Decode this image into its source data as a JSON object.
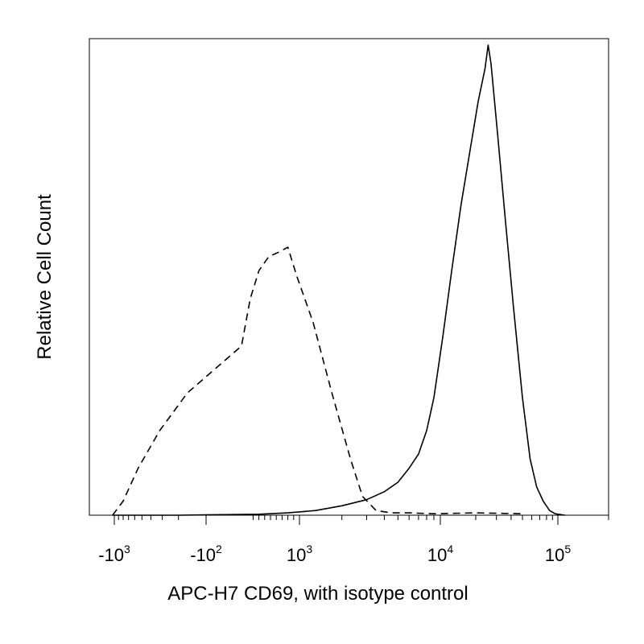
{
  "chart_data": {
    "type": "line",
    "title": "",
    "xlabel": "APC-H7 CD69, with isotype control",
    "ylabel": "Relative Cell Count",
    "x_scale": "biexponential",
    "xlim": [
      -2000,
      200000
    ],
    "ylim": [
      0,
      100
    ],
    "x_ticks": [
      {
        "value": -1000,
        "base": "-10",
        "exp": "3"
      },
      {
        "value": -100,
        "base": "-10",
        "exp": "2"
      },
      {
        "value": 1000,
        "base": "10",
        "exp": "3"
      },
      {
        "value": 10000,
        "base": "10",
        "exp": "4"
      },
      {
        "value": 100000,
        "base": "10",
        "exp": "5"
      }
    ],
    "grid": false,
    "legend": "none",
    "line_color": "#000000",
    "series": [
      {
        "style": "dashed",
        "x": [
          -1050,
          -800,
          -550,
          -320,
          -160,
          0,
          150,
          300,
          470,
          650,
          800,
          950,
          1250,
          1700,
          2300,
          2800,
          3500,
          4500,
          6000,
          9000,
          20000,
          50000
        ],
        "y": [
          0,
          3,
          10,
          18,
          26,
          36,
          46,
          52,
          55,
          56,
          57,
          51,
          41,
          26,
          12,
          4,
          1,
          0.5,
          0.5,
          0.3,
          0.5,
          0.3
        ]
      },
      {
        "style": "solid",
        "x": [
          -1050,
          -200,
          300,
          800,
          1300,
          2000,
          3000,
          4000,
          5000,
          6000,
          7000,
          8000,
          9000,
          10500,
          12500,
          15000,
          18000,
          21000,
          24000,
          25500,
          27000,
          31000,
          36000,
          42000,
          50000,
          58000,
          66000,
          75000,
          85000,
          95000,
          110000
        ],
        "y": [
          0,
          0,
          0.2,
          0.5,
          1,
          2,
          3.3,
          5,
          7,
          10,
          13,
          18,
          25,
          38,
          52,
          66,
          78,
          88,
          95,
          100,
          96,
          80,
          62,
          44,
          25,
          12,
          6,
          3,
          1,
          0.3,
          0
        ]
      }
    ]
  }
}
